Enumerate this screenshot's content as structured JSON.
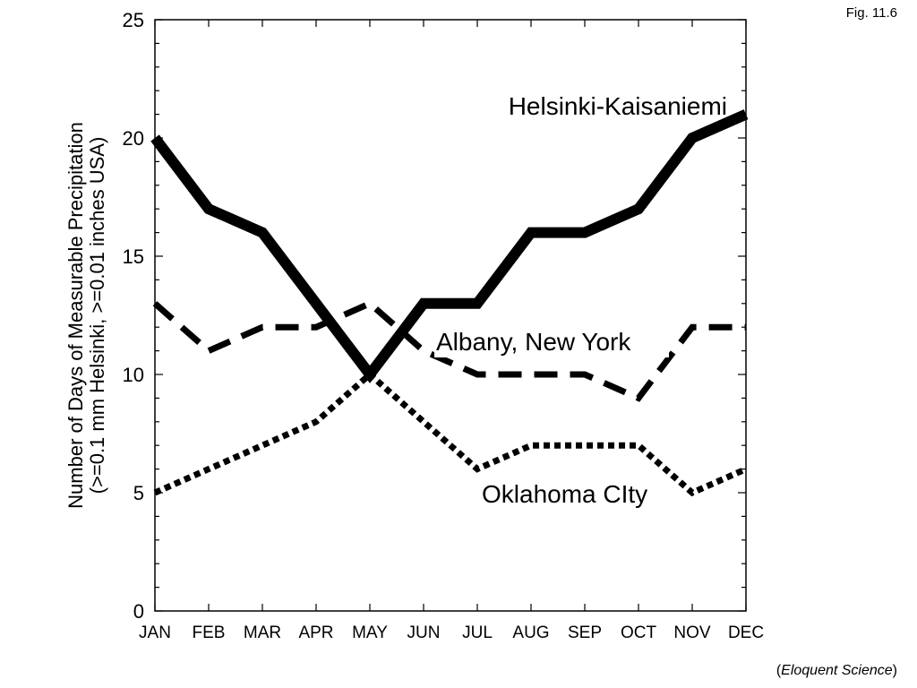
{
  "figure_label": "Fig. 11.6",
  "source": {
    "open": "(",
    "name": "Eloquent Science",
    "close": ")"
  },
  "chart_data": {
    "type": "line",
    "title": "",
    "xlabel": "",
    "ylabel_line1": "Number of Days of Measurable Precipitation",
    "ylabel_line2": "(>=0.1 mm Helsinki, >=0.01 inches USA)",
    "categories": [
      "JAN",
      "FEB",
      "MAR",
      "APR",
      "MAY",
      "JUN",
      "JUL",
      "AUG",
      "SEP",
      "OCT",
      "NOV",
      "DEC"
    ],
    "ylim": [
      0,
      25
    ],
    "yticks": [
      0,
      5,
      10,
      15,
      20,
      25
    ],
    "grid": false,
    "legend": "inline labels",
    "series": [
      {
        "name": "Helsinki-Kaisaniemi",
        "style": "solid",
        "color": "#000000",
        "values": [
          20,
          17,
          16,
          13,
          10,
          13,
          13,
          16,
          16,
          17,
          20,
          21
        ]
      },
      {
        "name": "Albany, New York",
        "style": "long-dash",
        "color": "#000000",
        "values": [
          13,
          11,
          12,
          12,
          13,
          11,
          10,
          10,
          10,
          9,
          12,
          12
        ]
      },
      {
        "name": "Oklahoma CIty",
        "style": "dotted",
        "color": "#000000",
        "values": [
          5,
          6,
          7,
          8,
          10,
          8,
          6,
          7,
          7,
          7,
          5,
          6
        ]
      }
    ]
  }
}
